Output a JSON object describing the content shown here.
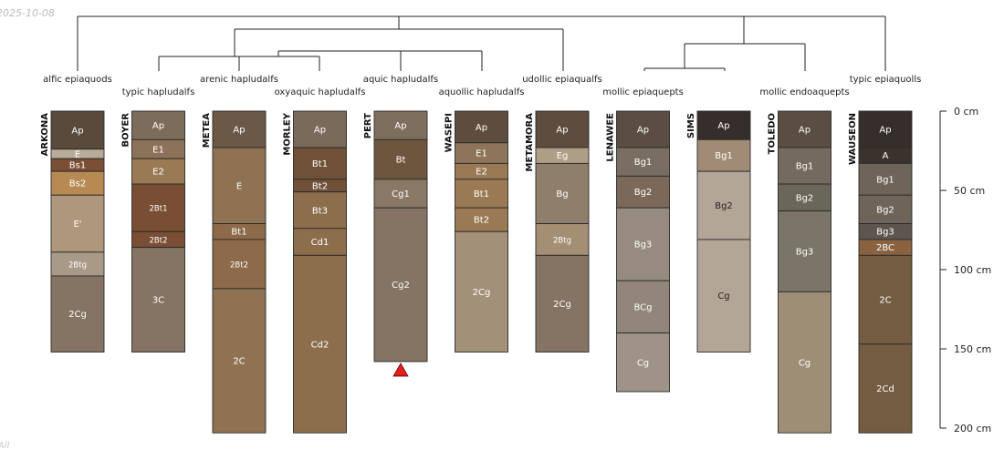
{
  "date_stamp": "2025-10-08",
  "footer_note": "All",
  "depth_axis": {
    "unit": "cm",
    "max_depth": 200,
    "ticks": [
      {
        "value": 0,
        "label": "0 cm"
      },
      {
        "value": 50,
        "label": "50 cm"
      },
      {
        "value": 100,
        "label": "100 cm"
      },
      {
        "value": 150,
        "label": "150 cm"
      },
      {
        "value": 200,
        "label": "200 cm"
      }
    ]
  },
  "profiles": [
    {
      "name": "ARKONA",
      "taxon": "alfic epiaquods",
      "horizons": [
        {
          "name": "Ap",
          "top": 0,
          "bottom": 24,
          "color": "#5a4a3c",
          "text": "#ffffff"
        },
        {
          "name": "E",
          "top": 24,
          "bottom": 30,
          "color": "#b9ac98",
          "text": "#ffffff"
        },
        {
          "name": "Bs1",
          "top": 30,
          "bottom": 38,
          "color": "#7a4f35",
          "text": "#ffffff"
        },
        {
          "name": "Bs2",
          "top": 38,
          "bottom": 53,
          "color": "#b88a53",
          "text": "#ffffff"
        },
        {
          "name": "E'",
          "top": 53,
          "bottom": 89,
          "color": "#ae977c",
          "text": "#ffffff"
        },
        {
          "name": "2Btg",
          "top": 89,
          "bottom": 104,
          "color": "#a89a86",
          "text": "#ffffff"
        },
        {
          "name": "2Cg",
          "top": 104,
          "bottom": 152,
          "color": "#857363",
          "text": "#ffffff"
        }
      ]
    },
    {
      "name": "BOYER",
      "taxon": "typic hapludalfs",
      "horizons": [
        {
          "name": "Ap",
          "top": 0,
          "bottom": 18,
          "color": "#7c6c5c",
          "text": "#ffffff"
        },
        {
          "name": "E1",
          "top": 18,
          "bottom": 30,
          "color": "#8c7258",
          "text": "#ffffff"
        },
        {
          "name": "E2",
          "top": 30,
          "bottom": 46,
          "color": "#9a7a54",
          "text": "#ffffff"
        },
        {
          "name": "2Bt1",
          "top": 46,
          "bottom": 76,
          "color": "#7a4e34",
          "text": "#ffffff"
        },
        {
          "name": "2Bt2",
          "top": 76,
          "bottom": 86,
          "color": "#7a4e34",
          "text": "#ffffff"
        },
        {
          "name": "3C",
          "top": 86,
          "bottom": 152,
          "color": "#857363",
          "text": "#ffffff"
        }
      ]
    },
    {
      "name": "METEA",
      "taxon": "arenic hapludalfs",
      "horizons": [
        {
          "name": "Ap",
          "top": 0,
          "bottom": 23,
          "color": "#6b5846",
          "text": "#ffffff"
        },
        {
          "name": "E",
          "top": 23,
          "bottom": 71,
          "color": "#8e7252",
          "text": "#ffffff"
        },
        {
          "name": "Bt1",
          "top": 71,
          "bottom": 81,
          "color": "#8c6a4a",
          "text": "#ffffff"
        },
        {
          "name": "2Bt2",
          "top": 81,
          "bottom": 112,
          "color": "#8c6a4a",
          "text": "#ffffff"
        },
        {
          "name": "2C",
          "top": 112,
          "bottom": 203,
          "color": "#8e7252",
          "text": "#ffffff"
        }
      ]
    },
    {
      "name": "MORLEY",
      "taxon": "oxyaquic hapludalfs",
      "horizons": [
        {
          "name": "Ap",
          "top": 0,
          "bottom": 23,
          "color": "#7a6a5a",
          "text": "#ffffff"
        },
        {
          "name": "Bt1",
          "top": 23,
          "bottom": 43,
          "color": "#6e5136",
          "text": "#ffffff"
        },
        {
          "name": "Bt2",
          "top": 43,
          "bottom": 51,
          "color": "#6e5136",
          "text": "#ffffff"
        },
        {
          "name": "Bt3",
          "top": 51,
          "bottom": 74,
          "color": "#8c6e4c",
          "text": "#ffffff"
        },
        {
          "name": "Cd1",
          "top": 74,
          "bottom": 91,
          "color": "#8c6e4c",
          "text": "#ffffff"
        },
        {
          "name": "Cd2",
          "top": 91,
          "bottom": 203,
          "color": "#8c6e4c",
          "text": "#ffffff"
        }
      ]
    },
    {
      "name": "PERT",
      "taxon": "aquic hapludalfs",
      "horizons": [
        {
          "name": "Ap",
          "top": 0,
          "bottom": 18,
          "color": "#7e6e5e",
          "text": "#ffffff"
        },
        {
          "name": "Bt",
          "top": 18,
          "bottom": 43,
          "color": "#6e563e",
          "text": "#ffffff"
        },
        {
          "name": "Cg1",
          "top": 43,
          "bottom": 61,
          "color": "#8a7866",
          "text": "#ffffff"
        },
        {
          "name": "Cg2",
          "top": 61,
          "bottom": 158,
          "color": "#857363",
          "text": "#ffffff"
        }
      ]
    },
    {
      "name": "WASEPI",
      "taxon": "aquollic hapludalfs",
      "horizons": [
        {
          "name": "Ap",
          "top": 0,
          "bottom": 20,
          "color": "#5e4c3e",
          "text": "#ffffff"
        },
        {
          "name": "E1",
          "top": 20,
          "bottom": 33,
          "color": "#8e7458",
          "text": "#ffffff"
        },
        {
          "name": "E2",
          "top": 33,
          "bottom": 43,
          "color": "#9a7a54",
          "text": "#ffffff"
        },
        {
          "name": "Bt1",
          "top": 43,
          "bottom": 61,
          "color": "#9a7a54",
          "text": "#ffffff"
        },
        {
          "name": "Bt2",
          "top": 61,
          "bottom": 76,
          "color": "#9a7a54",
          "text": "#ffffff"
        },
        {
          "name": "2Cg",
          "top": 76,
          "bottom": 152,
          "color": "#a29078",
          "text": "#ffffff"
        }
      ]
    },
    {
      "name": "METAMORA",
      "taxon": "udollic epiaqualfs",
      "horizons": [
        {
          "name": "Ap",
          "top": 0,
          "bottom": 23,
          "color": "#5e4c3e",
          "text": "#ffffff"
        },
        {
          "name": "Eg",
          "top": 23,
          "bottom": 33,
          "color": "#ae9e86",
          "text": "#ffffff"
        },
        {
          "name": "Bg",
          "top": 33,
          "bottom": 71,
          "color": "#8e7e6a",
          "text": "#ffffff"
        },
        {
          "name": "2Btg",
          "top": 71,
          "bottom": 91,
          "color": "#a48e74",
          "text": "#ffffff"
        },
        {
          "name": "2Cg",
          "top": 91,
          "bottom": 152,
          "color": "#857363",
          "text": "#ffffff"
        }
      ]
    },
    {
      "name": "LENAWEE",
      "taxon": "mollic epiaquepts",
      "horizons": [
        {
          "name": "Ap",
          "top": 0,
          "bottom": 23,
          "color": "#5a4d42",
          "text": "#ffffff"
        },
        {
          "name": "Bg1",
          "top": 23,
          "bottom": 41,
          "color": "#7a6e62",
          "text": "#ffffff"
        },
        {
          "name": "Bg2",
          "top": 41,
          "bottom": 61,
          "color": "#7c6858",
          "text": "#ffffff"
        },
        {
          "name": "Bg3",
          "top": 61,
          "bottom": 107,
          "color": "#968b7e",
          "text": "#ffffff"
        },
        {
          "name": "BCg",
          "top": 107,
          "bottom": 140,
          "color": "#918679",
          "text": "#ffffff"
        },
        {
          "name": "Cg",
          "top": 140,
          "bottom": 177,
          "color": "#9e9386",
          "text": "#ffffff"
        }
      ]
    },
    {
      "name": "SIMS",
      "taxon": "",
      "horizons": [
        {
          "name": "Ap",
          "top": 0,
          "bottom": 18,
          "color": "#362e2a",
          "text": "#ffffff"
        },
        {
          "name": "Bg1",
          "top": 18,
          "bottom": 38,
          "color": "#a08c76",
          "text": "#ffffff"
        },
        {
          "name": "Bg2",
          "top": 38,
          "bottom": 81,
          "color": "#b4a696",
          "text": "#222222"
        },
        {
          "name": "Cg",
          "top": 81,
          "bottom": 152,
          "color": "#b4a696",
          "text": "#222222"
        }
      ]
    },
    {
      "name": "TOLEDO",
      "taxon": "mollic endoaquepts",
      "horizons": [
        {
          "name": "Ap",
          "top": 0,
          "bottom": 23,
          "color": "#5a4d42",
          "text": "#ffffff"
        },
        {
          "name": "Bg1",
          "top": 23,
          "bottom": 46,
          "color": "#756a5e",
          "text": "#ffffff"
        },
        {
          "name": "Bg2",
          "top": 46,
          "bottom": 63,
          "color": "#6a665a",
          "text": "#ffffff"
        },
        {
          "name": "Bg3",
          "top": 63,
          "bottom": 114,
          "color": "#7a7566",
          "text": "#ffffff"
        },
        {
          "name": "Cg",
          "top": 114,
          "bottom": 203,
          "color": "#9e8e76",
          "text": "#ffffff"
        }
      ]
    },
    {
      "name": "WAUSEON",
      "taxon": "typic epiaquolls",
      "horizons": [
        {
          "name": "Ap",
          "top": 0,
          "bottom": 23,
          "color": "#362e2a",
          "text": "#ffffff"
        },
        {
          "name": "A",
          "top": 23,
          "bottom": 33,
          "color": "#3a322c",
          "text": "#ffffff"
        },
        {
          "name": "Bg1",
          "top": 33,
          "bottom": 53,
          "color": "#6e645a",
          "text": "#ffffff"
        },
        {
          "name": "Bg2",
          "top": 53,
          "bottom": 71,
          "color": "#6e645a",
          "text": "#ffffff"
        },
        {
          "name": "Bg3",
          "top": 71,
          "bottom": 81,
          "color": "#5e564e",
          "text": "#ffffff"
        },
        {
          "name": "2BC",
          "top": 81,
          "bottom": 91,
          "color": "#8a6240",
          "text": "#ffffff"
        },
        {
          "name": "2C",
          "top": 91,
          "bottom": 147,
          "color": "#735c42",
          "text": "#ffffff"
        },
        {
          "name": "2Cd",
          "top": 147,
          "bottom": 203,
          "color": "#735c42",
          "text": "#ffffff"
        }
      ]
    }
  ],
  "markers": [
    {
      "profile": "PERT",
      "depth": 158,
      "shape": "triangle",
      "color": "#e02020"
    }
  ]
}
